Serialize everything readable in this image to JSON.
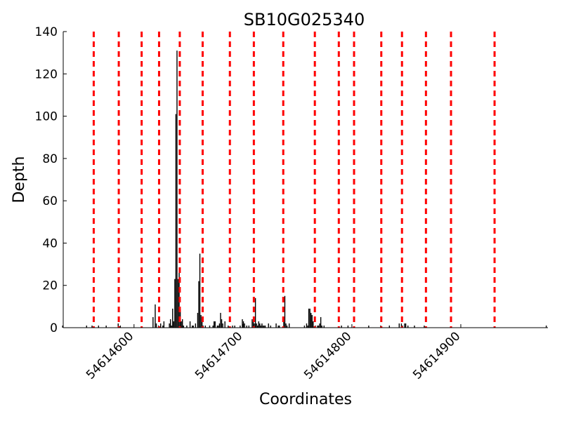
{
  "chart_data": {
    "type": "bar",
    "title": "SB10G025340",
    "xlabel": "Coordinates",
    "ylabel": "Depth",
    "xlim": [
      54614535,
      54614980
    ],
    "ylim": [
      0,
      140
    ],
    "yticks": [
      {
        "value": 0,
        "label": "0"
      },
      {
        "value": 20,
        "label": "20"
      },
      {
        "value": 40,
        "label": "40"
      },
      {
        "value": 60,
        "label": "60"
      },
      {
        "value": 80,
        "label": "80"
      },
      {
        "value": 100,
        "label": "100"
      },
      {
        "value": 120,
        "label": "120"
      },
      {
        "value": 140,
        "label": "140"
      }
    ],
    "xticks": [
      {
        "value": 54614600,
        "label": "54614600"
      },
      {
        "value": 54614700,
        "label": "54614700"
      },
      {
        "value": 54614800,
        "label": "54614800"
      },
      {
        "value": 54614900,
        "label": "54614900"
      }
    ],
    "grid": false,
    "colors": {
      "bars": "#000000",
      "markers": "#ff0000"
    },
    "markers": [
      54614563,
      54614586,
      54614607,
      54614623,
      54614642,
      54614663,
      54614688,
      54614710,
      54614737,
      54614766,
      54614788,
      54614802,
      54614827,
      54614846,
      54614868,
      54614891,
      54614931
    ],
    "bars": [
      [
        54614534,
        1
      ],
      [
        54614556,
        1
      ],
      [
        54614561,
        1
      ],
      [
        54614567,
        1
      ],
      [
        54614574,
        1
      ],
      [
        54614585,
        2
      ],
      [
        54614587,
        1
      ],
      [
        54614617,
        5
      ],
      [
        54614619,
        11
      ],
      [
        54614620,
        2
      ],
      [
        54614622,
        1
      ],
      [
        54614624,
        2
      ],
      [
        54614626,
        1
      ],
      [
        54614627,
        3
      ],
      [
        54614632,
        2
      ],
      [
        54614633,
        4
      ],
      [
        54614634,
        1
      ],
      [
        54614635,
        9
      ],
      [
        54614636,
        3
      ],
      [
        54614637,
        23
      ],
      [
        54614638,
        101
      ],
      [
        54614639,
        131
      ],
      [
        54614640,
        23
      ],
      [
        54614641,
        26
      ],
      [
        54614642,
        9
      ],
      [
        54614643,
        3
      ],
      [
        54614644,
        4
      ],
      [
        54614645,
        1
      ],
      [
        54614648,
        1
      ],
      [
        54614651,
        3
      ],
      [
        54614653,
        1
      ],
      [
        54614654,
        1
      ],
      [
        54614656,
        2
      ],
      [
        54614658,
        7
      ],
      [
        54614659,
        22
      ],
      [
        54614660,
        35
      ],
      [
        54614661,
        6
      ],
      [
        54614662,
        5
      ],
      [
        54614663,
        1
      ],
      [
        54614665,
        1
      ],
      [
        54614669,
        1
      ],
      [
        54614672,
        1
      ],
      [
        54614673,
        3
      ],
      [
        54614674,
        3
      ],
      [
        54614676,
        1
      ],
      [
        54614677,
        1
      ],
      [
        54614678,
        2
      ],
      [
        54614679,
        7
      ],
      [
        54614680,
        4
      ],
      [
        54614681,
        2
      ],
      [
        54614683,
        3
      ],
      [
        54614686,
        1
      ],
      [
        54614690,
        1
      ],
      [
        54614692,
        1
      ],
      [
        54614697,
        1
      ],
      [
        54614699,
        4
      ],
      [
        54614700,
        3
      ],
      [
        54614701,
        2
      ],
      [
        54614703,
        1
      ],
      [
        54614705,
        1
      ],
      [
        54614708,
        4
      ],
      [
        54614709,
        3
      ],
      [
        54614710,
        2
      ],
      [
        54614711,
        14
      ],
      [
        54614712,
        2
      ],
      [
        54614713,
        1
      ],
      [
        54614714,
        3
      ],
      [
        54614715,
        2
      ],
      [
        54614716,
        1
      ],
      [
        54614717,
        2
      ],
      [
        54614718,
        1
      ],
      [
        54614719,
        1
      ],
      [
        54614720,
        1
      ],
      [
        54614723,
        2
      ],
      [
        54614725,
        1
      ],
      [
        54614730,
        2
      ],
      [
        54614732,
        1
      ],
      [
        54614733,
        1
      ],
      [
        54614737,
        3
      ],
      [
        54614738,
        15
      ],
      [
        54614739,
        2
      ],
      [
        54614740,
        1
      ],
      [
        54614742,
        2
      ],
      [
        54614756,
        1
      ],
      [
        54614758,
        2
      ],
      [
        54614759,
        1
      ],
      [
        54614760,
        9
      ],
      [
        54614761,
        9
      ],
      [
        54614762,
        7
      ],
      [
        54614763,
        6
      ],
      [
        54614764,
        3
      ],
      [
        54614766,
        1
      ],
      [
        54614768,
        1
      ],
      [
        54614769,
        1
      ],
      [
        54614770,
        2
      ],
      [
        54614771,
        5
      ],
      [
        54614772,
        1
      ],
      [
        54614774,
        1
      ],
      [
        54614790,
        1
      ],
      [
        54614796,
        1
      ],
      [
        54614815,
        1
      ],
      [
        54614826,
        1
      ],
      [
        54614834,
        1
      ],
      [
        54614843,
        2
      ],
      [
        54614845,
        2
      ],
      [
        54614846,
        1
      ],
      [
        54614848,
        2
      ],
      [
        54614849,
        2
      ],
      [
        54614851,
        1
      ],
      [
        54614857,
        1
      ],
      [
        54614866,
        1
      ],
      [
        54614978,
        1
      ]
    ]
  }
}
